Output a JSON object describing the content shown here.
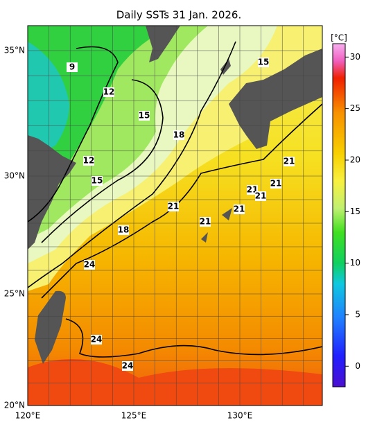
{
  "title": "Daily SSTs 31 Jan. 2026.",
  "lon_ticks": [
    "120°E",
    "125°E",
    "130°E"
  ],
  "lat_ticks": [
    "35°N",
    "30°N",
    "25°N",
    "20°N"
  ],
  "colorbar": {
    "unit": "[°C]",
    "range": [
      -2,
      31.3
    ],
    "ticks": [
      0,
      5,
      10,
      15,
      20,
      25,
      30
    ]
  },
  "contour_labels": [
    "9",
    "12",
    "15",
    "15",
    "12",
    "15",
    "18",
    "21",
    "21",
    "21",
    "21",
    "21",
    "21",
    "18",
    "21",
    "24",
    "24",
    "24"
  ]
}
